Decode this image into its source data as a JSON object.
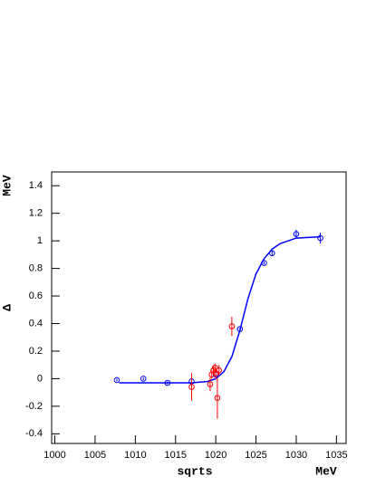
{
  "chart_data": {
    "type": "scatter",
    "xlabel": "sqrts",
    "xunit": "MeV",
    "ylabel": "Δ",
    "yunit": "MeV",
    "xlim": [
      999.6,
      1036.2
    ],
    "ylim": [
      -0.47,
      1.5
    ],
    "xticks": [
      1000,
      1005,
      1010,
      1015,
      1020,
      1025,
      1030,
      1035
    ],
    "yticks": [
      -0.4,
      -0.2,
      0,
      0.2,
      0.4,
      0.6,
      0.8,
      1,
      1.2,
      1.4
    ],
    "series": [
      {
        "color": "#0000ff",
        "x": [
          1007.7,
          1011,
          1014,
          1017,
          1020,
          1023,
          1026,
          1027,
          1030,
          1033
        ],
        "values": [
          -0.01,
          0.0,
          -0.03,
          -0.02,
          0.03,
          0.36,
          0.84,
          0.91,
          1.05,
          1.02
        ],
        "errors": [
          0.01,
          0.01,
          0.01,
          0.01,
          0.01,
          0.01,
          0.01,
          0.02,
          0.03,
          0.04
        ]
      },
      {
        "color": "#ff0000",
        "x": [
          1017,
          1019.3,
          1019.5,
          1019.7,
          1019.9,
          1020,
          1020.2,
          1020.4,
          1022
        ],
        "values": [
          -0.06,
          -0.04,
          0.03,
          0.06,
          0.08,
          0.04,
          -0.14,
          0.06,
          0.38
        ],
        "errors": [
          0.1,
          0.05,
          0.03,
          0.03,
          0.03,
          0.04,
          0.15,
          0.04,
          0.07
        ]
      }
    ],
    "fit": {
      "color": "#0000ff",
      "x": [
        1008,
        1014,
        1017,
        1019,
        1020,
        1021,
        1022,
        1023,
        1024,
        1025,
        1026,
        1027,
        1028,
        1030,
        1033
      ],
      "values": [
        -0.03,
        -0.03,
        -0.03,
        -0.02,
        0.0,
        0.05,
        0.16,
        0.35,
        0.58,
        0.76,
        0.87,
        0.94,
        0.98,
        1.02,
        1.03
      ]
    }
  }
}
